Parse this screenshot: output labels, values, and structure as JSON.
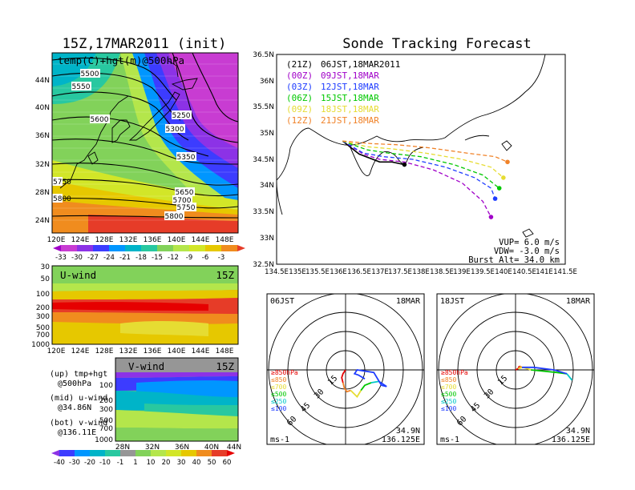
{
  "left_title": "15Z,17MAR2011 (init)",
  "right_title": "Sonde Tracking Forecast",
  "top_map": {
    "label": "temp(C)+hgt(m)@500hPa",
    "lat_ticks": [
      "44N",
      "40N",
      "36N",
      "32N",
      "28N",
      "24N"
    ],
    "lon_ticks": [
      "120E",
      "124E",
      "128E",
      "132E",
      "136E",
      "140E",
      "144E",
      "148E"
    ],
    "contour_labels": [
      "5500",
      "5550",
      "5600",
      "5250",
      "5300",
      "5350",
      "5650",
      "5700",
      "5750",
      "5800",
      "5750",
      "5800"
    ],
    "colorbar": [
      "-33",
      "-30",
      "-27",
      "-24",
      "-21",
      "-18",
      "-15",
      "-12",
      "-9",
      "-6",
      "-3"
    ]
  },
  "u_panel": {
    "label": "U-wind",
    "time": "15Z",
    "y_ticks": [
      "30",
      "50",
      "100",
      "200",
      "300",
      "500",
      "700",
      "1000"
    ],
    "x_ticks": [
      "120E",
      "124E",
      "128E",
      "132E",
      "136E",
      "140E",
      "144E",
      "148E"
    ]
  },
  "v_panel": {
    "label": "V-wind",
    "time": "15Z",
    "y_ticks": [
      "100",
      "200",
      "300",
      "500",
      "700",
      "1000"
    ],
    "x_ticks": [
      "28N",
      "32N",
      "36N",
      "40N",
      "44N"
    ],
    "colorbar": [
      "-40",
      "-30",
      "-20",
      "-10",
      "-1",
      "1",
      "10",
      "20",
      "30",
      "40",
      "50",
      "60"
    ]
  },
  "legend_notes": [
    {
      "a": "(up) tmp+hgt",
      "b": "@500hPa"
    },
    {
      "a": "(mid) u-wind",
      "b": "@34.86N"
    },
    {
      "a": "(bot) v-wind",
      "b": "@136.11E"
    }
  ],
  "chart_data": {
    "type": "line",
    "title": "Sonde Tracking Forecast",
    "xlim": [
      134.5,
      141.5
    ],
    "ylim": [
      32.5,
      36.5
    ],
    "x_ticks": [
      "134.5E",
      "135E",
      "135.5E",
      "136E",
      "136.5E",
      "137E",
      "137.5E",
      "138E",
      "138.5E",
      "139E",
      "139.5E",
      "140E",
      "140.5E",
      "141E",
      "141.5E"
    ],
    "y_ticks": [
      "36.5N",
      "36N",
      "35.5N",
      "35N",
      "34.5N",
      "34N",
      "33.5N",
      "33N",
      "32.5N"
    ],
    "legend": [
      {
        "init": "(21Z)",
        "label": "06JST,18MAR2011",
        "color": "#000000"
      },
      {
        "init": "(00Z)",
        "label": "09JST,18MAR",
        "color": "#a000c8"
      },
      {
        "init": "(03Z)",
        "label": "12JST,18MAR",
        "color": "#1e3cff"
      },
      {
        "init": "(06Z)",
        "label": "15JST,18MAR",
        "color": "#00c800"
      },
      {
        "init": "(09Z)",
        "label": "18JST,18MAR",
        "color": "#e6dc32"
      },
      {
        "init": "(12Z)",
        "label": "21JST,18MAR",
        "color": "#f08228"
      }
    ],
    "series": [
      {
        "name": "06JST,18MAR2011",
        "color": "#000000",
        "x": [
          136.1,
          136.5,
          137.0,
          137.3,
          137.6
        ],
        "y": [
          34.85,
          34.6,
          34.45,
          34.45,
          34.4
        ]
      },
      {
        "name": "09JST,18MAR",
        "color": "#a000c8",
        "x": [
          136.1,
          136.6,
          137.0,
          137.6,
          138.3,
          139.0,
          139.5,
          139.7
        ],
        "y": [
          34.85,
          34.6,
          34.5,
          34.45,
          34.3,
          34.05,
          33.7,
          33.4
        ]
      },
      {
        "name": "12JST,18MAR",
        "color": "#1e3cff",
        "x": [
          136.1,
          136.6,
          137.1,
          137.8,
          138.6,
          139.3,
          139.7,
          139.8
        ],
        "y": [
          34.85,
          34.62,
          34.55,
          34.5,
          34.35,
          34.15,
          33.95,
          33.75
        ]
      },
      {
        "name": "15JST,18MAR",
        "color": "#00c800",
        "x": [
          136.1,
          136.7,
          137.2,
          138.0,
          138.8,
          139.5,
          139.9
        ],
        "y": [
          34.85,
          34.68,
          34.62,
          34.55,
          34.4,
          34.2,
          33.95
        ]
      },
      {
        "name": "18JST,18MAR",
        "color": "#e6dc32",
        "x": [
          136.1,
          136.7,
          137.3,
          138.1,
          139.0,
          139.7,
          140.0
        ],
        "y": [
          34.85,
          34.74,
          34.7,
          34.62,
          34.5,
          34.35,
          34.15
        ]
      },
      {
        "name": "21JST,18MAR",
        "color": "#f08228",
        "x": [
          136.1,
          136.8,
          137.4,
          138.2,
          139.1,
          139.8,
          140.1
        ],
        "y": [
          34.85,
          34.8,
          34.78,
          34.72,
          34.62,
          34.55,
          34.45
        ]
      }
    ],
    "annotations": [
      "VUP= 6.0 m/s",
      "VDW= -3.0 m/s",
      "Burst Alt= 34.0 km"
    ]
  },
  "hodographs": [
    {
      "time": "06JST",
      "date": "18MAR",
      "rings": [
        "15",
        "30",
        "45",
        "60"
      ],
      "levels": [
        {
          "label": "≥850hPa",
          "color": "#e60000"
        },
        {
          "label": "≤850",
          "color": "#f08228"
        },
        {
          "label": "≤700",
          "color": "#e6dc32"
        },
        {
          "label": "≤500",
          "color": "#00c800"
        },
        {
          "label": "≤250",
          "color": "#00c8c8"
        },
        {
          "label": "≤100",
          "color": "#1e3cff"
        }
      ],
      "unit": "ms-1",
      "lat": "34.9N",
      "lon": "136.125E",
      "segments": [
        {
          "color": "#e60000",
          "u": [
            0,
            -2,
            -3,
            -2
          ],
          "v": [
            0,
            -3,
            -6,
            -10
          ]
        },
        {
          "color": "#f08228",
          "u": [
            -2,
            -1,
            1,
            4
          ],
          "v": [
            -10,
            -14,
            -17,
            -16
          ]
        },
        {
          "color": "#e6dc32",
          "u": [
            4,
            9,
            12
          ],
          "v": [
            -16,
            -21,
            -16
          ]
        },
        {
          "color": "#00c800",
          "u": [
            12,
            15,
            20
          ],
          "v": [
            -16,
            -12,
            -10
          ]
        },
        {
          "color": "#00c8c8",
          "u": [
            20,
            26
          ],
          "v": [
            -10,
            -9
          ]
        },
        {
          "color": "#1e3cff",
          "u": [
            26,
            32,
            28,
            22,
            9,
            7,
            10,
            15
          ],
          "v": [
            -9,
            -13,
            -12,
            -2,
            0,
            -3,
            -4,
            -7
          ]
        }
      ]
    },
    {
      "time": "18JST",
      "date": "18MAR",
      "rings": [
        "15",
        "30",
        "45",
        "60"
      ],
      "levels": [
        {
          "label": "≥850hPa",
          "color": "#e60000"
        },
        {
          "label": "≤850",
          "color": "#f08228"
        },
        {
          "label": "≤700",
          "color": "#e6dc32"
        },
        {
          "label": "≤500",
          "color": "#00c800"
        },
        {
          "label": "≤250",
          "color": "#00c8c8"
        },
        {
          "label": "≤100",
          "color": "#1e3cff"
        }
      ],
      "unit": "ms-1",
      "lat": "34.9N",
      "lon": "136.125E",
      "segments": [
        {
          "color": "#e60000",
          "u": [
            0,
            2,
            3
          ],
          "v": [
            0,
            1,
            3
          ]
        },
        {
          "color": "#f08228",
          "u": [
            3,
            5,
            2
          ],
          "v": [
            3,
            2,
            1
          ]
        },
        {
          "color": "#e6dc32",
          "u": [
            2,
            6,
            12
          ],
          "v": [
            1,
            2,
            0
          ]
        },
        {
          "color": "#00c800",
          "u": [
            12,
            22,
            32,
            40
          ],
          "v": [
            0,
            -1,
            -2,
            -3
          ]
        },
        {
          "color": "#00c8c8",
          "u": [
            40,
            44,
            40
          ],
          "v": [
            -3,
            -8,
            -3
          ]
        },
        {
          "color": "#1e3cff",
          "u": [
            40,
            30,
            14,
            5
          ],
          "v": [
            -3,
            0,
            2,
            2
          ]
        }
      ]
    }
  ]
}
